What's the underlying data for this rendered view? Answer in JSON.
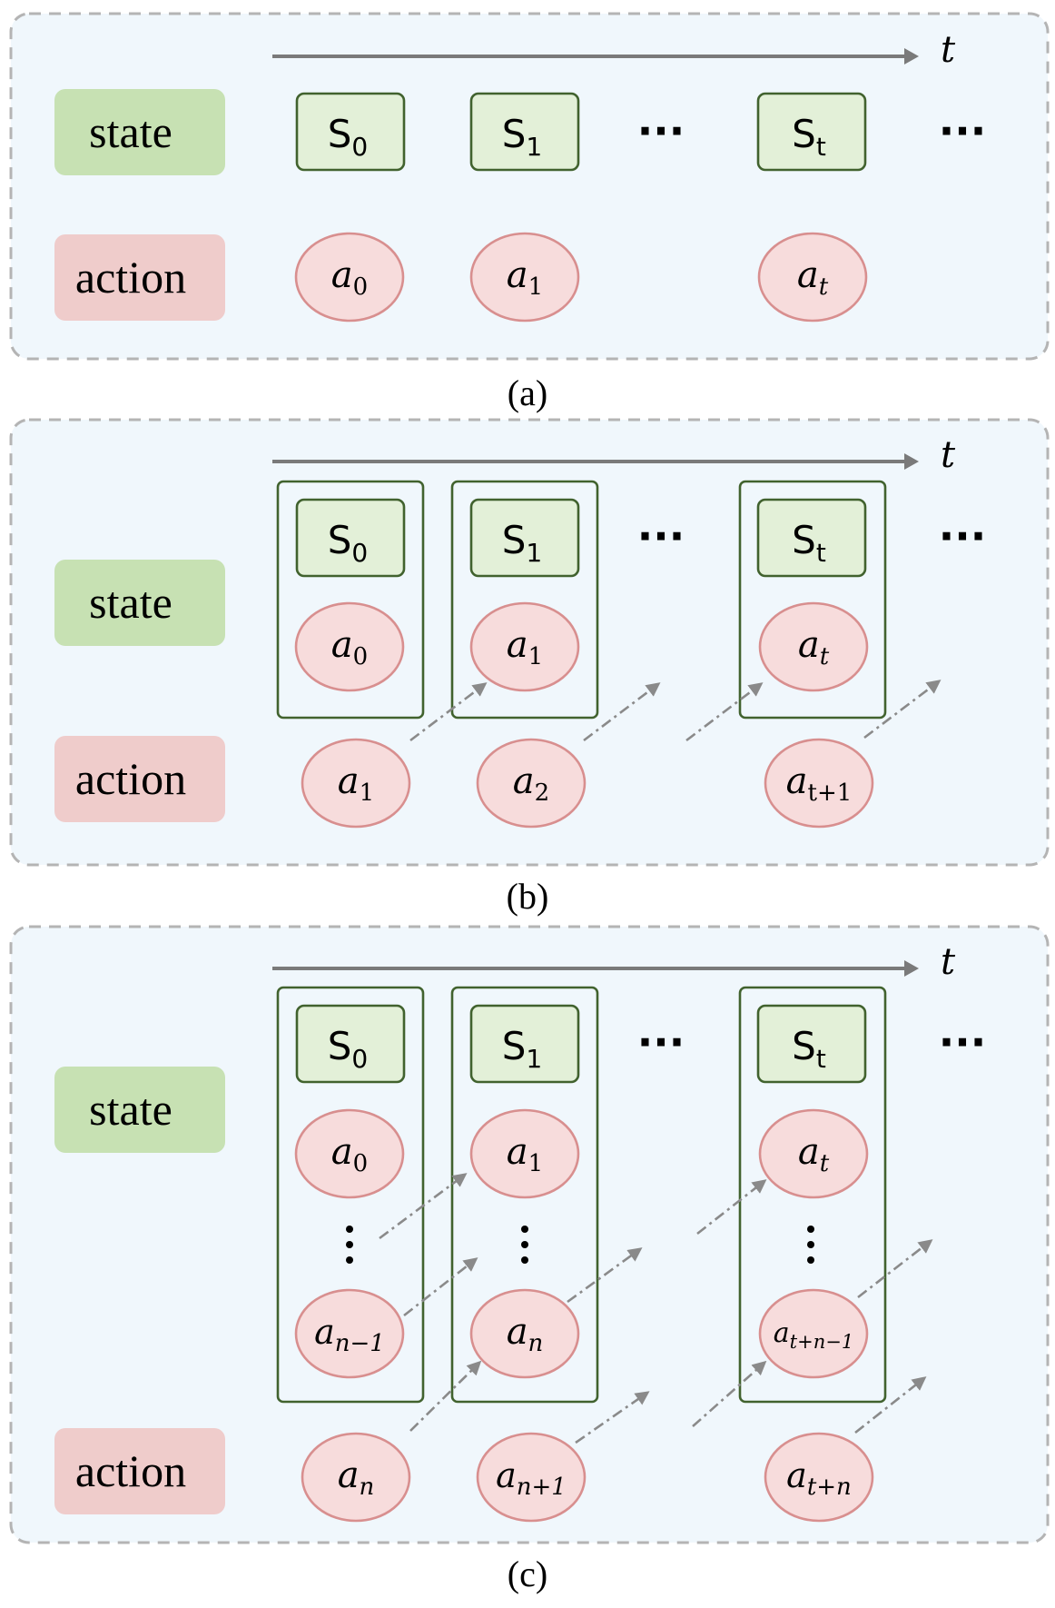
{
  "row_labels": {
    "state": "state",
    "action": "action"
  },
  "time_label": "t",
  "ellipsis": "···",
  "panels": [
    {
      "caption": "(a)",
      "states": [
        {
          "base": "S",
          "sub": "0"
        },
        {
          "base": "S",
          "sub": "1"
        },
        {
          "base": "S",
          "sub": "t"
        }
      ],
      "actions": [
        {
          "base": "a",
          "sub": "0"
        },
        {
          "base": "a",
          "sub": "1"
        },
        {
          "base": "a",
          "sub": "t"
        }
      ]
    },
    {
      "caption": "(b)",
      "states": [
        {
          "base": "S",
          "sub": "0"
        },
        {
          "base": "S",
          "sub": "1"
        },
        {
          "base": "S",
          "sub": "t"
        }
      ],
      "group_actions": [
        {
          "base": "a",
          "sub": "0"
        },
        {
          "base": "a",
          "sub": "1"
        },
        {
          "base": "a",
          "sub": "t"
        }
      ],
      "actions": [
        {
          "base": "a",
          "sub": "1"
        },
        {
          "base": "a",
          "sub": "2"
        },
        {
          "base": "a",
          "sub": "t+1"
        }
      ]
    },
    {
      "caption": "(c)",
      "states": [
        {
          "base": "S",
          "sub": "0"
        },
        {
          "base": "S",
          "sub": "1"
        },
        {
          "base": "S",
          "sub": "t"
        }
      ],
      "group_actions_top": [
        {
          "base": "a",
          "sub": "0"
        },
        {
          "base": "a",
          "sub": "1"
        },
        {
          "base": "a",
          "sub": "t"
        }
      ],
      "group_actions_bottom": [
        {
          "base": "a",
          "sub": "n−1"
        },
        {
          "base": "a",
          "sub": "n"
        },
        {
          "base": "a",
          "sub": "t+n−1"
        }
      ],
      "actions": [
        {
          "base": "a",
          "sub": "n"
        },
        {
          "base": "a",
          "sub": "n+1"
        },
        {
          "base": "a",
          "sub": "t+n"
        }
      ]
    }
  ]
}
